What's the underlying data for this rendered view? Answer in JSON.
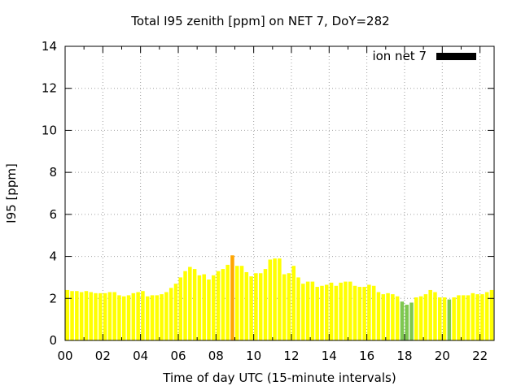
{
  "chart_data": {
    "type": "bar",
    "title": "Total I95 zenith [ppm] on NET 7, DoY=282",
    "xlabel": "Time of day UTC (15-minute intervals)",
    "ylabel": "I95 [ppm]",
    "xlim": [
      0,
      22.75
    ],
    "ylim": [
      0,
      14
    ],
    "xticks": [
      "00",
      "02",
      "04",
      "06",
      "08",
      "10",
      "12",
      "14",
      "16",
      "18",
      "20",
      "22"
    ],
    "yticks": [
      "0",
      "2",
      "4",
      "6",
      "8",
      "10",
      "12",
      "14"
    ],
    "grid": true,
    "legend": {
      "position": "top-right",
      "entries": [
        {
          "name": "ion net 7",
          "color": "#000000"
        }
      ]
    },
    "colors": {
      "normal": "#ffff00",
      "elevated": "#ffa500",
      "low": "#7ec850"
    },
    "bar_width_hours": 0.25,
    "x_start_hours": 0,
    "series": [
      {
        "name": "ion net 7",
        "values": [
          2.4,
          2.35,
          2.35,
          2.3,
          2.35,
          2.3,
          2.25,
          2.25,
          2.25,
          2.3,
          2.3,
          2.15,
          2.1,
          2.15,
          2.25,
          2.3,
          2.35,
          2.1,
          2.15,
          2.15,
          2.2,
          2.3,
          2.5,
          2.7,
          3.0,
          3.3,
          3.5,
          3.4,
          3.1,
          3.15,
          2.9,
          3.1,
          3.3,
          3.4,
          3.6,
          4.05,
          3.55,
          3.55,
          3.25,
          3.05,
          3.2,
          3.2,
          3.4,
          3.85,
          3.9,
          3.9,
          3.15,
          3.2,
          3.55,
          3.0,
          2.7,
          2.8,
          2.8,
          2.55,
          2.6,
          2.65,
          2.75,
          2.6,
          2.75,
          2.8,
          2.8,
          2.6,
          2.55,
          2.55,
          2.65,
          2.6,
          2.3,
          2.2,
          2.25,
          2.2,
          2.1,
          1.85,
          1.7,
          1.8,
          2.05,
          2.1,
          2.2,
          2.4,
          2.3,
          2.05,
          2.05,
          1.95,
          2.05,
          2.15,
          2.15,
          2.15,
          2.25,
          2.2,
          2.2,
          2.3,
          2.4
        ]
      }
    ]
  }
}
